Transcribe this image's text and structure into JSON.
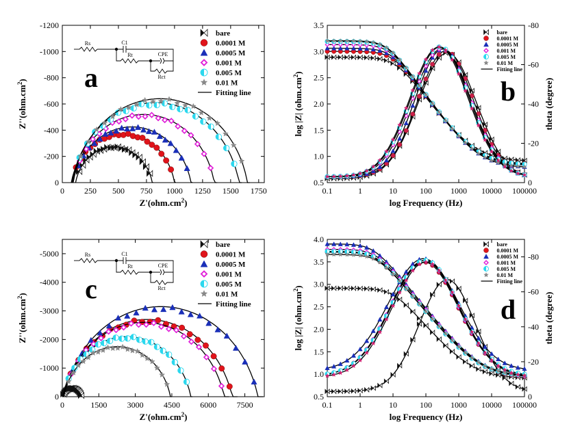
{
  "colors": {
    "bare": "#111111",
    "0.0001 M": "#e0141b",
    "0.0005 M": "#1a2fb8",
    "0.001 M": "#e020d8",
    "0.005 M": "#2bd8ee",
    "0.01 M": "#888888",
    "theta_0.0001 M": "#cc1f4a",
    "theta_0.01 M": "#d02070",
    "fit": "#000000"
  },
  "circuit_labels": {
    "rs": "Rs",
    "c1": "C1",
    "rt": "Rt",
    "cpe": "CPE",
    "rct": "Rct"
  },
  "chart_data": [
    {
      "panel_letter": "a",
      "type": "scatter",
      "xlabel": "Z'(ohm.cm2)",
      "ylabel": "Z''(ohm.cm2)",
      "xlim": [
        0,
        1800
      ],
      "ylim": [
        0,
        -1200
      ],
      "xticks": [
        "0",
        "250",
        "500",
        "750",
        "1000",
        "1250",
        "1500",
        "1750"
      ],
      "yticks": [
        "0",
        "-200",
        "-400",
        "-600",
        "-800",
        "-1000",
        "-1200"
      ],
      "legend": [
        "bare",
        "0.0001 M",
        "0.0005 M",
        "0.001 M",
        "0.005 M",
        "0.01 M",
        "Fitting line"
      ],
      "series": [
        {
          "name": "bare",
          "center": 460,
          "radius": 350,
          "depression": 75,
          "end": 810
        },
        {
          "name": "0.0001 M",
          "center": 540,
          "radius": 470,
          "depression": 95,
          "end": 1010
        },
        {
          "name": "0.0005 M",
          "center": 620,
          "radius": 540,
          "depression": 115,
          "end": 1160
        },
        {
          "name": "0.001 M",
          "center": 725,
          "radius": 640,
          "depression": 120,
          "end": 1380
        },
        {
          "name": "0.005 M",
          "center": 830,
          "radius": 760,
          "depression": 150,
          "end": 1600
        },
        {
          "name": "0.01 M",
          "center": 870,
          "radius": 795,
          "depression": 155,
          "end": 1670
        }
      ]
    },
    {
      "panel_letter": "b",
      "type": "line",
      "xlabel": "log Frequency (Hz)",
      "ylabel": "log |Z| (ohm.cm2)",
      "y2label": "theta (degree)",
      "xlim": [
        0.1,
        100000
      ],
      "ylim": [
        0.5,
        3.5
      ],
      "y2lim": [
        0,
        -80
      ],
      "xticks": [
        "0.1",
        "1",
        "10",
        "100",
        "1000",
        "10000",
        "100000"
      ],
      "yticks": [
        "0.5",
        "1.0",
        "1.5",
        "2.0",
        "2.5",
        "3.0",
        "3.5"
      ],
      "y2ticks": [
        "0",
        "-20",
        "-40",
        "-60",
        "-80"
      ],
      "legend": [
        "bare",
        "0.0001 M",
        "0.0005 M",
        "0.001 M",
        "0.005 M",
        "0.01 M",
        "Fitting line"
      ],
      "series": [
        {
          "name": "bare",
          "Rs": 0.8,
          "R1": 770,
          "fc1": 12,
          "n": 0.85,
          "theta_peak": -66,
          "theta_f": 450,
          "theta_w": 1.25,
          "theta_low": -2
        },
        {
          "name": "0.0001 M",
          "Rs": 0.7,
          "R1": 1000,
          "fc1": 10,
          "n": 0.87,
          "theta_peak": -67,
          "theta_f": 400,
          "theta_w": 1.2,
          "theta_low": -3
        },
        {
          "name": "0.0005 M",
          "Rs": 0.6,
          "R1": 1150,
          "fc1": 9,
          "n": 0.88,
          "theta_peak": -68,
          "theta_f": 330,
          "theta_w": 1.2,
          "theta_low": -3
        },
        {
          "name": "0.001 M",
          "Rs": 0.65,
          "R1": 1350,
          "fc1": 8,
          "n": 0.89,
          "theta_peak": -68,
          "theta_f": 300,
          "theta_w": 1.25,
          "theta_low": -3
        },
        {
          "name": "0.005 M",
          "Rs": 0.68,
          "R1": 1550,
          "fc1": 7,
          "n": 0.89,
          "theta_peak": -69,
          "theta_f": 270,
          "theta_w": 1.25,
          "theta_low": -3
        },
        {
          "name": "0.01 M",
          "Rs": 0.6,
          "R1": 1600,
          "fc1": 7,
          "n": 0.9,
          "theta_peak": -69,
          "theta_f": 250,
          "theta_w": 1.25,
          "theta_low": -3
        }
      ]
    },
    {
      "panel_letter": "c",
      "type": "scatter",
      "xlabel": "Z'(ohm.cm2)",
      "ylabel": "Z''(ohm.cm2)",
      "xlim": [
        0,
        8300
      ],
      "ylim": [
        0,
        -5500
      ],
      "xticks": [
        "0",
        "1500",
        "3000",
        "4500",
        "6000",
        "7500"
      ],
      "yticks": [
        "0",
        "-1000",
        "-2000",
        "-3000",
        "-4000",
        "-5000"
      ],
      "legend": [
        "bare",
        "0.0001 M",
        "0.0005 M",
        "0.001 M",
        "0.005 M",
        "0.01 M",
        "Fitting line"
      ],
      "series": [
        {
          "name": "bare",
          "center": 400,
          "radius": 400,
          "depression": 100,
          "end": 810
        },
        {
          "name": "0.0001 M",
          "center": 3500,
          "radius": 3600,
          "depression": 900,
          "end": 7200
        },
        {
          "name": "0.0005 M",
          "center": 4050,
          "radius": 4100,
          "depression": 950,
          "end": 8250
        },
        {
          "name": "0.001 M",
          "center": 3350,
          "radius": 3400,
          "depression": 800,
          "end": 6850
        },
        {
          "name": "0.005 M",
          "center": 2650,
          "radius": 2700,
          "depression": 600,
          "end": 5350
        },
        {
          "name": "0.01 M",
          "center": 2250,
          "radius": 2250,
          "depression": 500,
          "end": 4500
        }
      ]
    },
    {
      "panel_letter": "d",
      "type": "line",
      "xlabel": "log Frequency (Hz)",
      "ylabel": "log |Z| (ohm.cm2)",
      "y2label": "theta (degree)",
      "xlim": [
        0.1,
        100000
      ],
      "ylim": [
        0.5,
        4.0
      ],
      "y2lim": [
        0,
        -90
      ],
      "xticks": [
        "0.1",
        "1",
        "10",
        "100",
        "1000",
        "10000",
        "100000"
      ],
      "yticks": [
        "0.5",
        "1.0",
        "1.5",
        "2.0",
        "2.5",
        "3.0",
        "3.5",
        "4.0"
      ],
      "y2ticks": [
        "0",
        "-20",
        "-40",
        "-60",
        "-80"
      ],
      "legend": [
        "bare",
        "0.0001 M",
        "0.0005 M",
        "0.001 M",
        "0.005 M",
        "0.01 M",
        "Fitting line"
      ],
      "series": [
        {
          "name": "bare",
          "Rs": 0.8,
          "R1": 810,
          "fc1": 10,
          "n": 0.85,
          "theta_peak": -67,
          "theta_f": 450,
          "theta_w": 1.2,
          "theta_low": -3
        },
        {
          "name": "0.0001 M",
          "Rs": 0.85,
          "R1": 5200,
          "fc1": 3,
          "n": 0.88,
          "theta_peak": -77,
          "theta_f": 90,
          "theta_w": 1.45,
          "theta_low": -12
        },
        {
          "name": "0.0005 M",
          "Rs": 0.9,
          "R1": 7900,
          "fc1": 2.5,
          "n": 0.9,
          "theta_peak": -79,
          "theta_f": 85,
          "theta_w": 1.5,
          "theta_low": -15
        },
        {
          "name": "0.001 M",
          "Rs": 0.85,
          "R1": 6000,
          "fc1": 3,
          "n": 0.89,
          "theta_peak": -78,
          "theta_f": 90,
          "theta_w": 1.45,
          "theta_low": -12
        },
        {
          "name": "0.005 M",
          "Rs": 0.9,
          "R1": 5400,
          "fc1": 3,
          "n": 0.89,
          "theta_peak": -78,
          "theta_f": 95,
          "theta_w": 1.45,
          "theta_low": -12
        },
        {
          "name": "0.01 M",
          "Rs": 0.9,
          "R1": 4600,
          "fc1": 3.5,
          "n": 0.88,
          "theta_peak": -77,
          "theta_f": 100,
          "theta_w": 1.45,
          "theta_low": -11
        }
      ]
    }
  ]
}
